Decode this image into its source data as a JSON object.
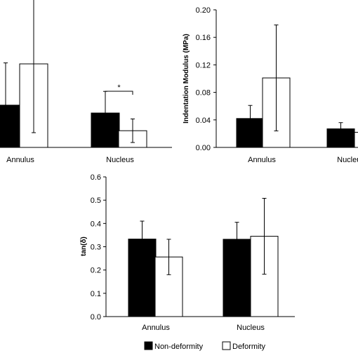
{
  "chart_data": [
    {
      "type": "bar",
      "categories": [
        "Annulus",
        "Nucleus"
      ],
      "ylabel": "",
      "series": [
        {
          "name": "Non-deformity",
          "values": [
            0.043,
            0.035
          ],
          "errors": [
            0.043,
            0.022
          ]
        },
        {
          "name": "Deformity",
          "values": [
            0.085,
            0.017
          ],
          "errors": [
            0.07,
            0.012
          ]
        }
      ],
      "ylim": [
        0,
        0.14
      ],
      "annotations": [
        {
          "text": "*",
          "between": "Nucleus"
        }
      ]
    },
    {
      "type": "bar",
      "categories": [
        "Annulus",
        "Nucleus"
      ],
      "ylabel": "Indentation Modulus (MPa)",
      "yticks": [
        "0.00",
        "0.04",
        "0.08",
        "0.12",
        "0.16",
        "0.20"
      ],
      "ylim": [
        0,
        0.2
      ],
      "series": [
        {
          "name": "Non-deformity",
          "values": [
            0.042,
            0.027
          ],
          "errors": [
            0.019,
            0.009
          ]
        },
        {
          "name": "Deformity",
          "values": [
            0.101,
            0.022
          ],
          "errors": [
            0.077,
            0.0
          ]
        }
      ]
    },
    {
      "type": "bar",
      "categories": [
        "Annulus",
        "Nucleus"
      ],
      "ylabel": "tan(δ)",
      "yticks": [
        "0.0",
        "0.1",
        "0.2",
        "0.3",
        "0.4",
        "0.5",
        "0.6"
      ],
      "ylim": [
        0,
        0.6
      ],
      "series": [
        {
          "name": "Non-deformity",
          "values": [
            0.333,
            0.332
          ],
          "errors": [
            0.077,
            0.073
          ]
        },
        {
          "name": "Deformity",
          "values": [
            0.256,
            0.345
          ],
          "errors": [
            0.076,
            0.163
          ]
        }
      ]
    }
  ],
  "legend": {
    "items": [
      {
        "label": "Non-deformity",
        "color": "#000000"
      },
      {
        "label": "Deformity",
        "color": "#ffffff"
      }
    ]
  }
}
